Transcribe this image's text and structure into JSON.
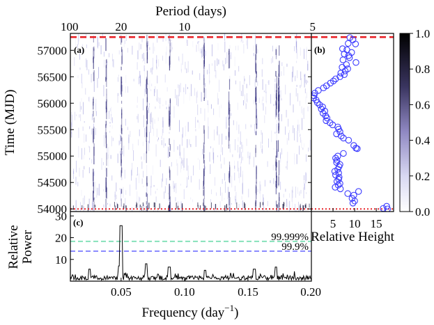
{
  "chart_data": [
    {
      "panel": "(a)",
      "type": "heatmap",
      "xlabel_top": "Period (days)",
      "xticks_top": [
        {
          "label": "100",
          "freq": 0.01
        },
        {
          "label": "20",
          "freq": 0.05
        },
        {
          "label": "10",
          "freq": 0.1
        },
        {
          "label": "5",
          "freq": 0.2
        }
      ],
      "ylabel": "Time (MJD)",
      "ylim": [
        53950,
        57320
      ],
      "yticks": [
        54000,
        54500,
        55000,
        55500,
        56000,
        56500,
        57000
      ],
      "xlim": [
        0.01,
        0.2
      ],
      "hlines": [
        {
          "y": 57250,
          "style": "dashed",
          "color": "#e8252a"
        },
        {
          "y": 54000,
          "style": "dotted",
          "color": "#e8252a"
        }
      ],
      "strong_features_freq": [
        0.05,
        0.038,
        0.028,
        0.07,
        0.088,
        0.115,
        0.135,
        0.156,
        0.172,
        0.174
      ]
    },
    {
      "panel": "(b)",
      "type": "scatter",
      "xlabel": "Relative Height",
      "xticks": [
        5,
        10,
        15
      ],
      "xlim": [
        0,
        19
      ],
      "points": [
        [
          8.9,
          57240
        ],
        [
          9.6,
          57200
        ],
        [
          8.5,
          57130
        ],
        [
          10.2,
          57120
        ],
        [
          7.2,
          57030
        ],
        [
          8.2,
          57010
        ],
        [
          9.3,
          56960
        ],
        [
          7.6,
          56930
        ],
        [
          8.6,
          56900
        ],
        [
          8.8,
          56860
        ],
        [
          7.3,
          56820
        ],
        [
          10.3,
          56770
        ],
        [
          8.1,
          56730
        ],
        [
          7.1,
          56680
        ],
        [
          8.4,
          56650
        ],
        [
          7.8,
          56610
        ],
        [
          6.8,
          56570
        ],
        [
          7.6,
          56540
        ],
        [
          6.6,
          56500
        ],
        [
          5.6,
          56460
        ],
        [
          5.1,
          56420
        ],
        [
          4.4,
          56380
        ],
        [
          3.5,
          56330
        ],
        [
          2.8,
          56290
        ],
        [
          1.6,
          56240
        ],
        [
          0.8,
          56190
        ],
        [
          0.6,
          56140
        ],
        [
          0.5,
          56100
        ],
        [
          1.1,
          56060
        ],
        [
          1.4,
          56010
        ],
        [
          1.9,
          55970
        ],
        [
          2.6,
          55930
        ],
        [
          2.3,
          55890
        ],
        [
          3.1,
          55850
        ],
        [
          2.7,
          55810
        ],
        [
          3.3,
          55760
        ],
        [
          3.6,
          55720
        ],
        [
          3.4,
          55670
        ],
        [
          4.3,
          55630
        ],
        [
          4.9,
          55590
        ],
        [
          6.1,
          55550
        ],
        [
          6.3,
          55510
        ],
        [
          6.6,
          55460
        ],
        [
          5.8,
          55420
        ],
        [
          6.9,
          55380
        ],
        [
          7.4,
          55340
        ],
        [
          8.6,
          55300
        ],
        [
          9.8,
          55200
        ],
        [
          10.3,
          55150
        ],
        [
          10.6,
          55140
        ],
        [
          7.4,
          55050
        ],
        [
          6.1,
          55000
        ],
        [
          5.6,
          54960
        ],
        [
          5.9,
          54920
        ],
        [
          5.8,
          54880
        ],
        [
          6.6,
          54840
        ],
        [
          6.4,
          54800
        ],
        [
          6.1,
          54750
        ],
        [
          5.4,
          54710
        ],
        [
          6.3,
          54680
        ],
        [
          5.6,
          54640
        ],
        [
          6.4,
          54600
        ],
        [
          6.3,
          54560
        ],
        [
          5.9,
          54520
        ],
        [
          6.6,
          54480
        ],
        [
          6.2,
          54450
        ],
        [
          5.5,
          54410
        ],
        [
          6.7,
          54380
        ],
        [
          10.9,
          54330
        ],
        [
          8.4,
          54290
        ],
        [
          9.8,
          54260
        ],
        [
          9.4,
          54200
        ],
        [
          10.0,
          54150
        ],
        [
          9.6,
          54110
        ],
        [
          17.4,
          54050
        ],
        [
          16.6,
          54010
        ],
        [
          17.6,
          54000
        ]
      ],
      "hlines": [
        {
          "y": 57250,
          "style": "dashed",
          "color": "#e8252a"
        },
        {
          "y": 54000,
          "style": "dotted",
          "color": "#e8252a"
        }
      ]
    },
    {
      "panel": "(c)",
      "type": "line",
      "xlabel": "Frequency (day−1)",
      "xlabel_text": "Frequency (day",
      "xlabel_sup": "−1",
      "xlabel_close": ")",
      "ylabel_line1": "Relative",
      "ylabel_line2": "Power",
      "xticks": [
        0.05,
        0.1,
        0.15,
        0.2
      ],
      "xtick_labels": [
        "0.05",
        "0.10",
        "0.15",
        "0.20"
      ],
      "yticks": [
        10,
        20,
        30
      ],
      "ylim": [
        0,
        32
      ],
      "xlim": [
        0.01,
        0.2
      ],
      "peaks": [
        {
          "x": 0.05,
          "y": 25.5
        },
        {
          "x": 0.0485,
          "y": 7
        },
        {
          "x": 0.07,
          "y": 8
        },
        {
          "x": 0.088,
          "y": 6.5
        },
        {
          "x": 0.172,
          "y": 6.5
        },
        {
          "x": 0.155,
          "y": 5.5
        },
        {
          "x": 0.025,
          "y": 5.5
        },
        {
          "x": 0.116,
          "y": 5
        }
      ],
      "significance": [
        {
          "label": "99.999%",
          "y": 18.3,
          "color": "#7fe0b6"
        },
        {
          "label": "99.9%",
          "y": 13.8,
          "color": "#7a7aff"
        }
      ]
    }
  ],
  "colorbar": {
    "ticks": [
      0.0,
      0.2,
      0.4,
      0.6,
      0.8,
      1.0
    ],
    "tick_labels": [
      "0.0",
      "0.2",
      "0.4",
      "0.6",
      "0.8",
      "1.0"
    ],
    "color_low": "#ffffff",
    "color_high": "#000000"
  }
}
